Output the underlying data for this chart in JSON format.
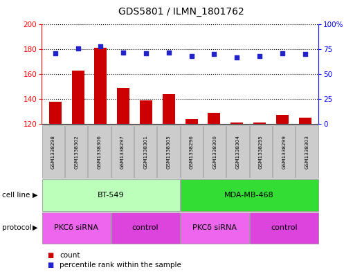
{
  "title": "GDS5801 / ILMN_1801762",
  "samples": [
    "GSM1338298",
    "GSM1338302",
    "GSM1338306",
    "GSM1338297",
    "GSM1338301",
    "GSM1338305",
    "GSM1338296",
    "GSM1338300",
    "GSM1338304",
    "GSM1338295",
    "GSM1338299",
    "GSM1338303"
  ],
  "counts": [
    138,
    163,
    181,
    149,
    139,
    144,
    124,
    129,
    121,
    121,
    127,
    125
  ],
  "percentiles": [
    71,
    76,
    78,
    72,
    71,
    72,
    68,
    70,
    67,
    68,
    71,
    70
  ],
  "ylim_left": [
    120,
    200
  ],
  "ylim_right": [
    0,
    100
  ],
  "yticks_left": [
    120,
    140,
    160,
    180,
    200
  ],
  "yticks_right": [
    0,
    25,
    50,
    75,
    100
  ],
  "ytick_right_labels": [
    "0",
    "25",
    "50",
    "75",
    "100%"
  ],
  "bar_color": "#cc0000",
  "dot_color": "#2222cc",
  "cell_line_groups": [
    {
      "label": "BT-549",
      "start": 0,
      "end": 5,
      "color": "#bbffbb"
    },
    {
      "label": "MDA-MB-468",
      "start": 6,
      "end": 11,
      "color": "#33dd33"
    }
  ],
  "protocol_groups": [
    {
      "label": "PKCδ siRNA",
      "start": 0,
      "end": 2,
      "color": "#ee66ee"
    },
    {
      "label": "control",
      "start": 3,
      "end": 5,
      "color": "#dd44dd"
    },
    {
      "label": "PKCδ siRNA",
      "start": 6,
      "end": 8,
      "color": "#ee66ee"
    },
    {
      "label": "control",
      "start": 9,
      "end": 11,
      "color": "#dd44dd"
    }
  ],
  "cell_line_label": "cell line",
  "protocol_label": "protocol",
  "legend_count_label": "count",
  "legend_pct_label": "percentile rank within the sample",
  "label_bg_color": "#cccccc",
  "figsize": [
    5.23,
    3.93
  ],
  "dpi": 100
}
